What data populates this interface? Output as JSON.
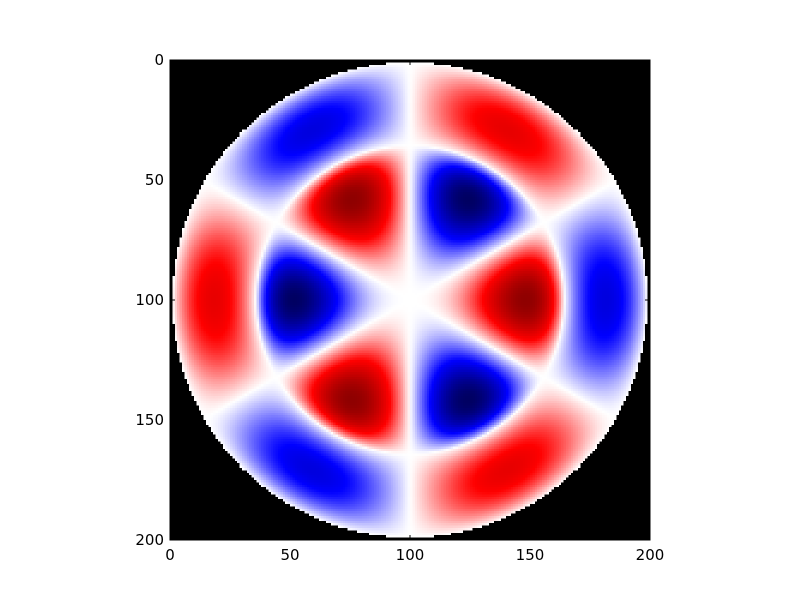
{
  "chart_data": {
    "type": "heatmap",
    "title": "",
    "xlabel": "",
    "ylabel": "",
    "xlim": [
      0,
      200
    ],
    "ylim": [
      200,
      0
    ],
    "image_size": [
      200,
      200
    ],
    "x_ticks": [
      0,
      50,
      100,
      150,
      200
    ],
    "y_ticks": [
      0,
      50,
      100,
      150,
      200
    ],
    "x_tick_labels": [
      "0",
      "50",
      "100",
      "150",
      "200"
    ],
    "y_tick_labels": [
      "0",
      "50",
      "100",
      "150",
      "200"
    ],
    "colormap": "seismic",
    "colormap_stops": [
      "#00004d",
      "#0000ff",
      "#ffffff",
      "#ff0000",
      "#800000"
    ],
    "background_color": "#000000",
    "field": {
      "center": [
        100,
        100
      ],
      "outer_radius": 99,
      "angular_order": 3,
      "radial_nodes": [
        0,
        64.3,
        99
      ],
      "inner_ring_peak_radius": 41,
      "outer_ring_peak_radius": 84,
      "inner_ring_peak_amplitude": 0.84,
      "outer_ring_peak_amplitude": 0.58,
      "phase_deg": 0
    },
    "grid": false,
    "legend": "none"
  }
}
